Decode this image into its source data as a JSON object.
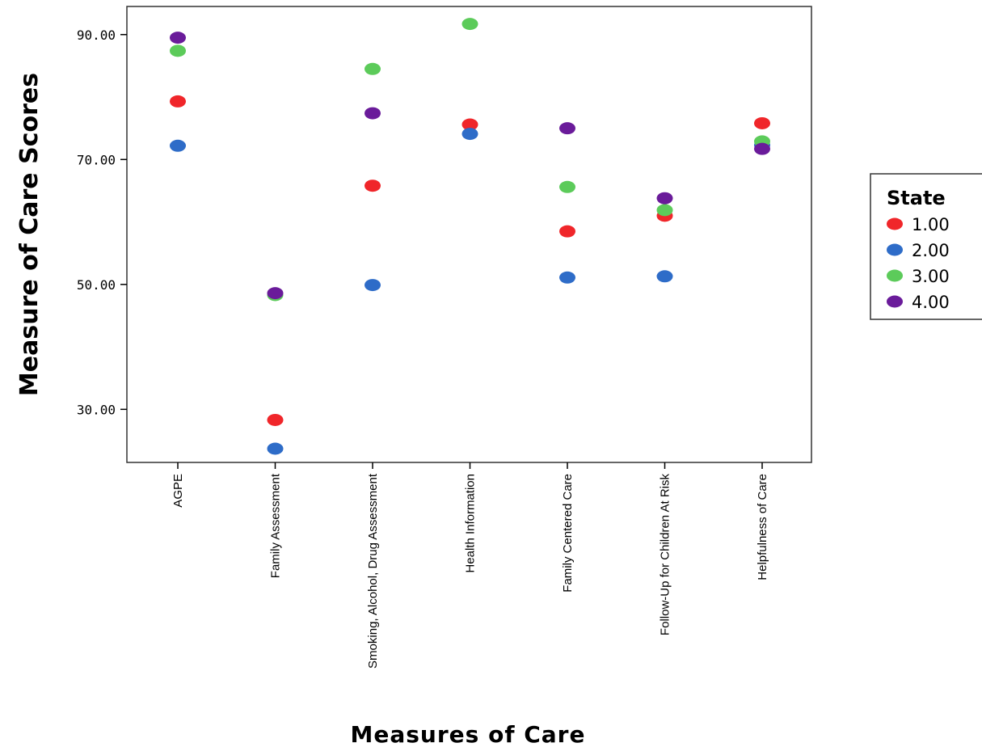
{
  "chart_data": {
    "type": "scatter",
    "xlabel": "Measures of Care",
    "ylabel": "Measure of Care Scores",
    "categories": [
      "AGPE",
      "Family Assessment",
      "Smoking, Alcohol, Drug Assessment",
      "Health Information",
      "Family Centered Care",
      "Follow-Up for Children At Risk",
      "Helpfulness of Care"
    ],
    "ylim": [
      21.5,
      94.5
    ],
    "yticks": [
      "30.00",
      "50.00",
      "70.00",
      "90.00"
    ],
    "ytick_values": [
      30,
      50,
      70,
      90
    ],
    "grid": false,
    "legend": {
      "title": "State",
      "placement": "right"
    },
    "series": [
      {
        "name": "1.00",
        "color": "#f0262a",
        "values": [
          79.3,
          28.3,
          65.8,
          75.6,
          58.5,
          61.0,
          75.8
        ]
      },
      {
        "name": "2.00",
        "color": "#2e6cc8",
        "values": [
          72.2,
          23.7,
          49.9,
          74.1,
          51.1,
          51.3,
          72.3
        ]
      },
      {
        "name": "3.00",
        "color": "#5ccb5a",
        "values": [
          87.4,
          48.3,
          84.5,
          91.7,
          65.6,
          61.9,
          72.9
        ]
      },
      {
        "name": "4.00",
        "color": "#6a1b9a",
        "values": [
          89.5,
          48.6,
          77.4,
          null,
          75.0,
          63.8,
          71.7
        ]
      }
    ]
  }
}
